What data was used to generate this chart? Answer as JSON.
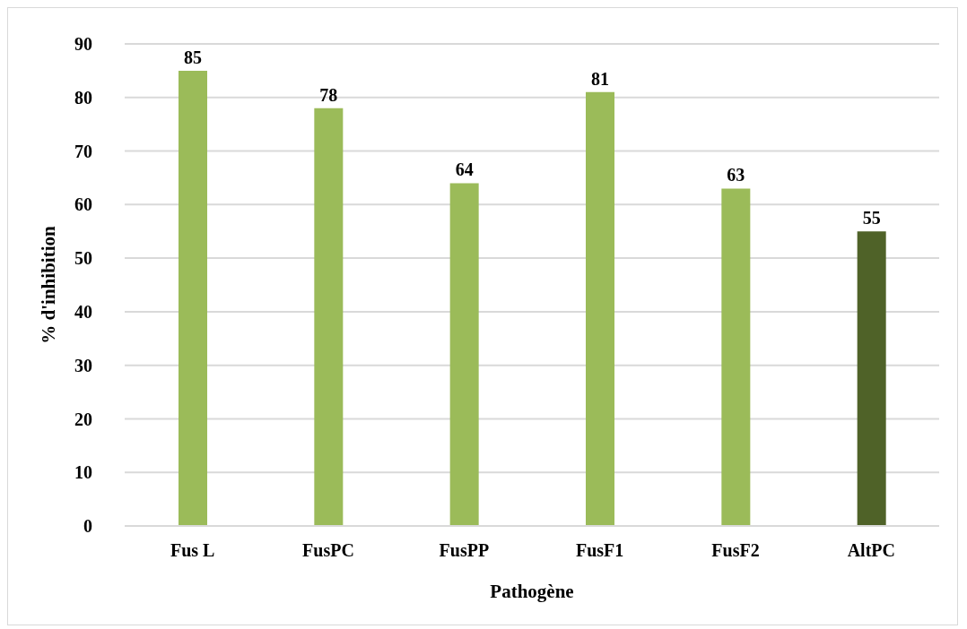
{
  "chart_data": {
    "type": "bar",
    "xlabel": "Pathogène",
    "ylabel": "% d'inhibition",
    "categories": [
      "Fus L",
      "FusPC",
      "FusPP",
      "FusF1",
      "FusF2",
      "AltPC"
    ],
    "values": [
      85,
      78,
      64,
      81,
      63,
      55
    ],
    "colors": [
      "#9bbb59",
      "#9bbb59",
      "#9bbb59",
      "#9bbb59",
      "#9bbb59",
      "#4f6228"
    ],
    "ylim": [
      0,
      90
    ],
    "yticks": [
      0,
      10,
      20,
      30,
      40,
      50,
      60,
      70,
      80,
      90
    ],
    "grid": "y",
    "data_labels": true
  }
}
